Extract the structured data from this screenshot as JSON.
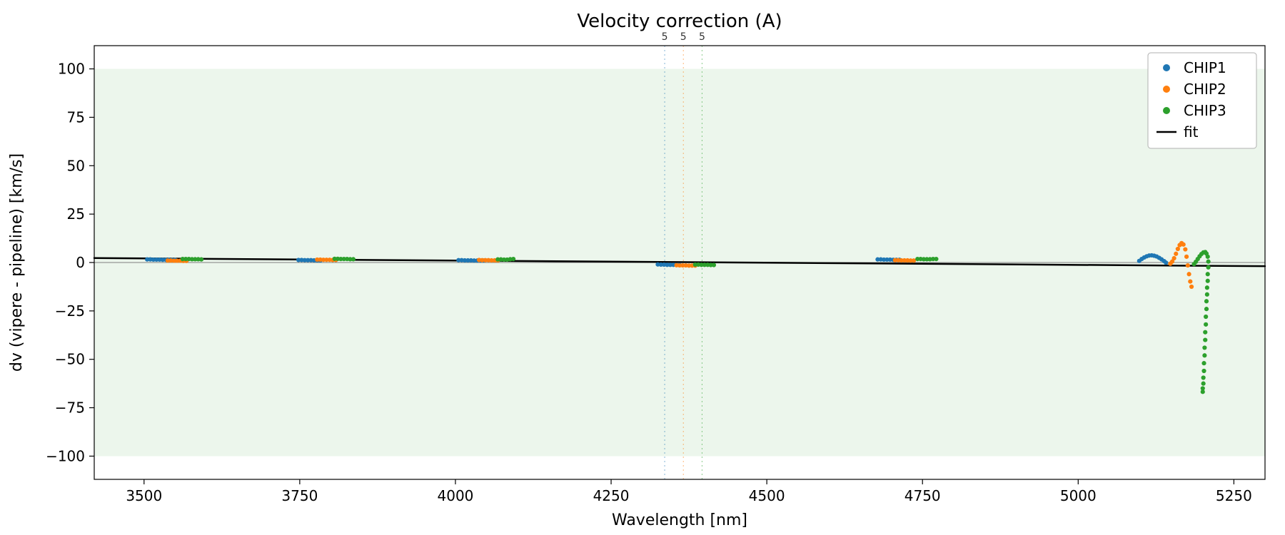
{
  "figure": {
    "background": "#ffffff"
  },
  "chart_data": {
    "type": "scatter",
    "title": "Velocity correction (A)",
    "xlabel": "Wavelength [nm]",
    "ylabel": "dv (vipere - pipeline) [km/s]",
    "xlim": [
      3420,
      5300
    ],
    "ylim": [
      -112,
      112
    ],
    "xticks": [
      3500,
      3750,
      4000,
      4250,
      4500,
      4750,
      5000,
      5250
    ],
    "yticks": [
      -100,
      -75,
      -50,
      -25,
      0,
      25,
      50,
      75,
      100
    ],
    "grid": false,
    "band": {
      "ymin": -100,
      "ymax": 100,
      "color": "#ecf6ec"
    },
    "zero_line": {
      "y": 0,
      "color": "#7f7f7f"
    },
    "vlines": [
      {
        "x": 4336,
        "color": "#1f77b4",
        "label": "5"
      },
      {
        "x": 4366,
        "color": "#ff7f0e",
        "label": "5"
      },
      {
        "x": 4396,
        "color": "#2ca02c",
        "label": "5"
      }
    ],
    "legend": {
      "position": "top-right",
      "entries": [
        {
          "label": "CHIP1",
          "marker": "dot",
          "color": "#1f77b4"
        },
        {
          "label": "CHIP2",
          "marker": "dot",
          "color": "#ff7f0e"
        },
        {
          "label": "CHIP3",
          "marker": "dot",
          "color": "#2ca02c"
        },
        {
          "label": "fit",
          "marker": "line",
          "color": "#000000"
        }
      ]
    },
    "fit": {
      "name": "fit",
      "color": "#000000",
      "width": 2.5,
      "points": [
        [
          3420,
          2.3
        ],
        [
          5300,
          -1.9
        ]
      ]
    },
    "marker_radius": 3.1,
    "series": [
      {
        "name": "CHIP1",
        "color": "#1f77b4",
        "points": [
          [
            3505,
            1.6
          ],
          [
            3510,
            1.6
          ],
          [
            3515,
            1.5
          ],
          [
            3520,
            1.5
          ],
          [
            3525,
            1.5
          ],
          [
            3530,
            1.4
          ],
          [
            3535,
            1.4
          ],
          [
            3540,
            1.4
          ],
          [
            3545,
            1.3
          ],
          [
            3550,
            1.3
          ],
          [
            3748,
            1.3
          ],
          [
            3753,
            1.3
          ],
          [
            3758,
            1.2
          ],
          [
            3763,
            1.2
          ],
          [
            3768,
            1.2
          ],
          [
            3773,
            1.1
          ],
          [
            3778,
            1.1
          ],
          [
            3783,
            1.1
          ],
          [
            4005,
            1.2
          ],
          [
            4010,
            1.2
          ],
          [
            4015,
            1.1
          ],
          [
            4020,
            1.1
          ],
          [
            4025,
            1.1
          ],
          [
            4030,
            1.0
          ],
          [
            4035,
            1.0
          ],
          [
            4040,
            1.0
          ],
          [
            4045,
            1.0
          ],
          [
            4325,
            -1.0
          ],
          [
            4330,
            -1.1
          ],
          [
            4335,
            -1.1
          ],
          [
            4340,
            -1.2
          ],
          [
            4345,
            -1.2
          ],
          [
            4350,
            -1.2
          ],
          [
            4355,
            -1.3
          ],
          [
            4360,
            -1.3
          ],
          [
            4678,
            1.6
          ],
          [
            4683,
            1.6
          ],
          [
            4688,
            1.5
          ],
          [
            4693,
            1.5
          ],
          [
            4698,
            1.5
          ],
          [
            4703,
            1.4
          ],
          [
            4708,
            1.4
          ],
          [
            4713,
            1.4
          ],
          [
            5098,
            0.8
          ],
          [
            5102,
            1.8
          ],
          [
            5106,
            2.6
          ],
          [
            5110,
            3.2
          ],
          [
            5114,
            3.6
          ],
          [
            5118,
            3.7
          ],
          [
            5122,
            3.5
          ],
          [
            5126,
            3.1
          ],
          [
            5130,
            2.4
          ],
          [
            5134,
            1.6
          ],
          [
            5138,
            0.7
          ],
          [
            5141,
            -0.1
          ]
        ]
      },
      {
        "name": "CHIP2",
        "color": "#ff7f0e",
        "points": [
          [
            3538,
            1.0
          ],
          [
            3543,
            1.0
          ],
          [
            3548,
            0.9
          ],
          [
            3553,
            0.9
          ],
          [
            3558,
            0.9
          ],
          [
            3563,
            0.8
          ],
          [
            3568,
            0.8
          ],
          [
            3778,
            1.5
          ],
          [
            3783,
            1.5
          ],
          [
            3788,
            1.4
          ],
          [
            3793,
            1.4
          ],
          [
            3798,
            1.4
          ],
          [
            3803,
            1.3
          ],
          [
            3808,
            1.3
          ],
          [
            4038,
            1.3
          ],
          [
            4043,
            1.2
          ],
          [
            4048,
            1.2
          ],
          [
            4053,
            1.2
          ],
          [
            4058,
            1.1
          ],
          [
            4063,
            1.1
          ],
          [
            4068,
            1.1
          ],
          [
            4355,
            -1.4
          ],
          [
            4360,
            -1.5
          ],
          [
            4365,
            -1.5
          ],
          [
            4370,
            -1.5
          ],
          [
            4375,
            -1.6
          ],
          [
            4380,
            -1.6
          ],
          [
            4385,
            -1.6
          ],
          [
            4706,
            1.2
          ],
          [
            4711,
            1.2
          ],
          [
            4716,
            1.1
          ],
          [
            4721,
            1.1
          ],
          [
            4726,
            1.1
          ],
          [
            4731,
            1.0
          ],
          [
            4736,
            1.0
          ],
          [
            5148,
            -0.6
          ],
          [
            5151,
            0.5
          ],
          [
            5154,
            2.2
          ],
          [
            5157,
            4.5
          ],
          [
            5160,
            7.0
          ],
          [
            5163,
            9.0
          ],
          [
            5166,
            10.0
          ],
          [
            5169,
            9.3
          ],
          [
            5172,
            6.8
          ],
          [
            5174,
            3.0
          ],
          [
            5176,
            -1.5
          ],
          [
            5178,
            -6.0
          ],
          [
            5180,
            -9.8
          ],
          [
            5182,
            -12.5
          ]
        ]
      },
      {
        "name": "CHIP3",
        "color": "#2ca02c",
        "points": [
          [
            3562,
            1.8
          ],
          [
            3567,
            1.8
          ],
          [
            3572,
            1.8
          ],
          [
            3577,
            1.7
          ],
          [
            3582,
            1.7
          ],
          [
            3587,
            1.7
          ],
          [
            3592,
            1.6
          ],
          [
            3806,
            1.9
          ],
          [
            3811,
            1.9
          ],
          [
            3816,
            1.8
          ],
          [
            3821,
            1.8
          ],
          [
            3826,
            1.8
          ],
          [
            3831,
            1.7
          ],
          [
            3836,
            1.7
          ],
          [
            4068,
            1.6
          ],
          [
            4073,
            1.6
          ],
          [
            4078,
            1.5
          ],
          [
            4083,
            1.5
          ],
          [
            4088,
            1.7
          ],
          [
            4093,
            1.8
          ],
          [
            4385,
            -1.1
          ],
          [
            4390,
            -1.1
          ],
          [
            4395,
            -1.2
          ],
          [
            4400,
            -1.2
          ],
          [
            4405,
            -1.2
          ],
          [
            4410,
            -1.3
          ],
          [
            4415,
            -1.3
          ],
          [
            4742,
            1.8
          ],
          [
            4747,
            1.8
          ],
          [
            4752,
            1.7
          ],
          [
            4757,
            1.7
          ],
          [
            4762,
            1.7
          ],
          [
            4767,
            1.8
          ],
          [
            4772,
            1.8
          ],
          [
            5186,
            -0.8
          ],
          [
            5189,
            0.4
          ],
          [
            5192,
            1.8
          ],
          [
            5195,
            3.2
          ],
          [
            5198,
            4.4
          ],
          [
            5201,
            5.2
          ],
          [
            5204,
            5.4
          ],
          [
            5206,
            4.6
          ],
          [
            5208,
            3.0
          ],
          [
            5209,
            0.5
          ],
          [
            5209,
            -2.5
          ],
          [
            5208,
            -6.0
          ],
          [
            5208,
            -9.5
          ],
          [
            5207,
            -13.0
          ],
          [
            5207,
            -16.5
          ],
          [
            5206,
            -20.0
          ],
          [
            5206,
            -24.0
          ],
          [
            5205,
            -28.0
          ],
          [
            5205,
            -32.0
          ],
          [
            5204,
            -36.0
          ],
          [
            5204,
            -40.0
          ],
          [
            5203,
            -44.0
          ],
          [
            5203,
            -48.0
          ],
          [
            5202,
            -52.0
          ],
          [
            5202,
            -56.0
          ],
          [
            5201,
            -59.5
          ],
          [
            5201,
            -62.5
          ],
          [
            5200,
            -65.0
          ],
          [
            5200,
            -66.8
          ]
        ]
      }
    ]
  }
}
